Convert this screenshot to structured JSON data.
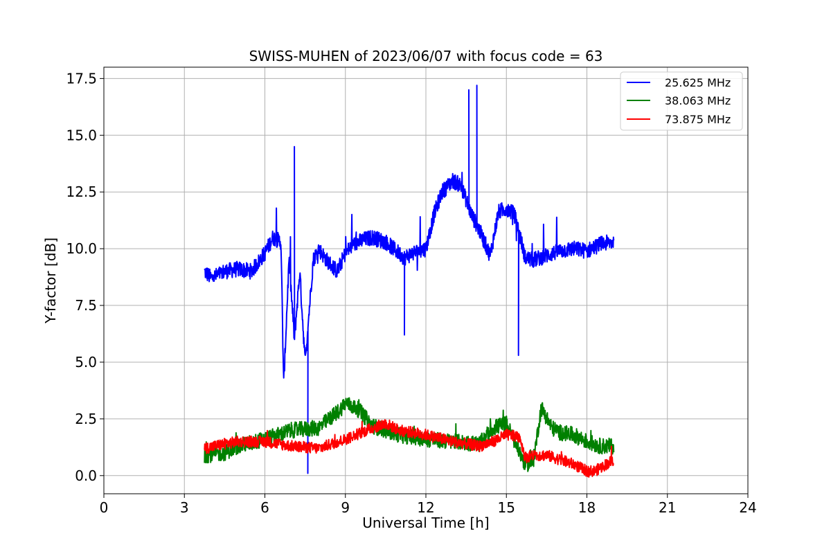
{
  "chart_data": {
    "type": "line",
    "title": "SWISS-MUHEN of 2023/06/07 with focus code = 63",
    "xlabel": "Universal Time [h]",
    "ylabel": "Y-factor [dB]",
    "xlim": [
      0,
      24
    ],
    "ylim": [
      -0.8,
      18.0
    ],
    "xticks": [
      0,
      3,
      6,
      9,
      12,
      15,
      18,
      21,
      24
    ],
    "xtick_labels": [
      "0",
      "3",
      "6",
      "9",
      "12",
      "15",
      "18",
      "21",
      "24"
    ],
    "yticks": [
      0.0,
      2.5,
      5.0,
      7.5,
      10.0,
      12.5,
      15.0,
      17.5
    ],
    "ytick_labels": [
      "0.0",
      "2.5",
      "5.0",
      "7.5",
      "10.0",
      "12.5",
      "15.0",
      "17.5"
    ],
    "grid": true,
    "legend_position": "top-right",
    "series": [
      {
        "name": "25.625 MHz",
        "color": "#0000ff",
        "x": [
          3.75,
          4.0,
          4.5,
          5.0,
          5.5,
          6.0,
          6.3,
          6.6,
          6.7,
          6.9,
          7.1,
          7.3,
          7.5,
          7.8,
          8.0,
          8.3,
          8.7,
          9.0,
          9.3,
          9.7,
          10.0,
          10.5,
          11.0,
          11.2,
          11.5,
          12.0,
          12.3,
          12.6,
          13.0,
          13.3,
          13.7,
          14.0,
          14.4,
          14.7,
          15.0,
          15.3,
          15.5,
          15.7,
          16.0,
          16.5,
          17.0,
          17.5,
          18.0,
          18.5,
          19.0
        ],
        "y": [
          9.0,
          8.7,
          9.0,
          9.1,
          9.0,
          9.8,
          10.5,
          10.3,
          4.0,
          9.5,
          6.0,
          9.0,
          5.0,
          9.5,
          10.0,
          9.5,
          9.0,
          9.8,
          10.2,
          10.4,
          10.5,
          10.3,
          9.8,
          9.6,
          9.8,
          10.0,
          11.5,
          12.5,
          13.0,
          12.8,
          11.5,
          10.8,
          9.7,
          11.6,
          11.8,
          11.5,
          10.6,
          9.6,
          9.5,
          9.7,
          9.9,
          10.0,
          9.9,
          10.2,
          10.3
        ],
        "annotated_peaks": [
          {
            "x": 7.1,
            "y": 14.5
          },
          {
            "x": 7.6,
            "y": 0.1
          },
          {
            "x": 11.2,
            "y": 6.2
          },
          {
            "x": 13.6,
            "y": 17.0
          },
          {
            "x": 13.9,
            "y": 17.2
          },
          {
            "x": 15.45,
            "y": 5.3
          }
        ]
      },
      {
        "name": "38.063 MHz",
        "color": "#008000",
        "x": [
          3.75,
          4.5,
          5.0,
          6.0,
          7.0,
          8.0,
          8.8,
          9.0,
          9.5,
          10.0,
          11.0,
          12.0,
          13.0,
          14.0,
          14.5,
          15.0,
          15.7,
          16.0,
          16.3,
          16.7,
          17.0,
          17.5,
          18.0,
          18.5,
          19.0
        ],
        "y": [
          0.9,
          1.0,
          1.3,
          1.6,
          2.0,
          2.1,
          2.9,
          3.2,
          2.9,
          2.2,
          1.8,
          1.6,
          1.5,
          1.4,
          2.1,
          2.3,
          0.5,
          0.6,
          3.0,
          2.1,
          1.9,
          1.8,
          1.5,
          1.3,
          1.3
        ]
      },
      {
        "name": "73.875 MHz",
        "color": "#ff0000",
        "x": [
          3.75,
          4.5,
          5.0,
          6.0,
          7.0,
          8.0,
          9.0,
          10.0,
          10.5,
          11.0,
          12.0,
          13.0,
          14.0,
          14.5,
          15.0,
          15.5,
          15.7,
          16.0,
          16.5,
          17.0,
          17.5,
          18.0,
          18.3,
          19.0
        ],
        "y": [
          1.2,
          1.4,
          1.5,
          1.5,
          1.3,
          1.2,
          1.6,
          2.1,
          2.3,
          2.0,
          1.8,
          1.5,
          1.3,
          1.5,
          1.8,
          1.7,
          0.8,
          0.9,
          0.9,
          0.7,
          0.5,
          0.2,
          0.2,
          0.7
        ]
      }
    ]
  }
}
